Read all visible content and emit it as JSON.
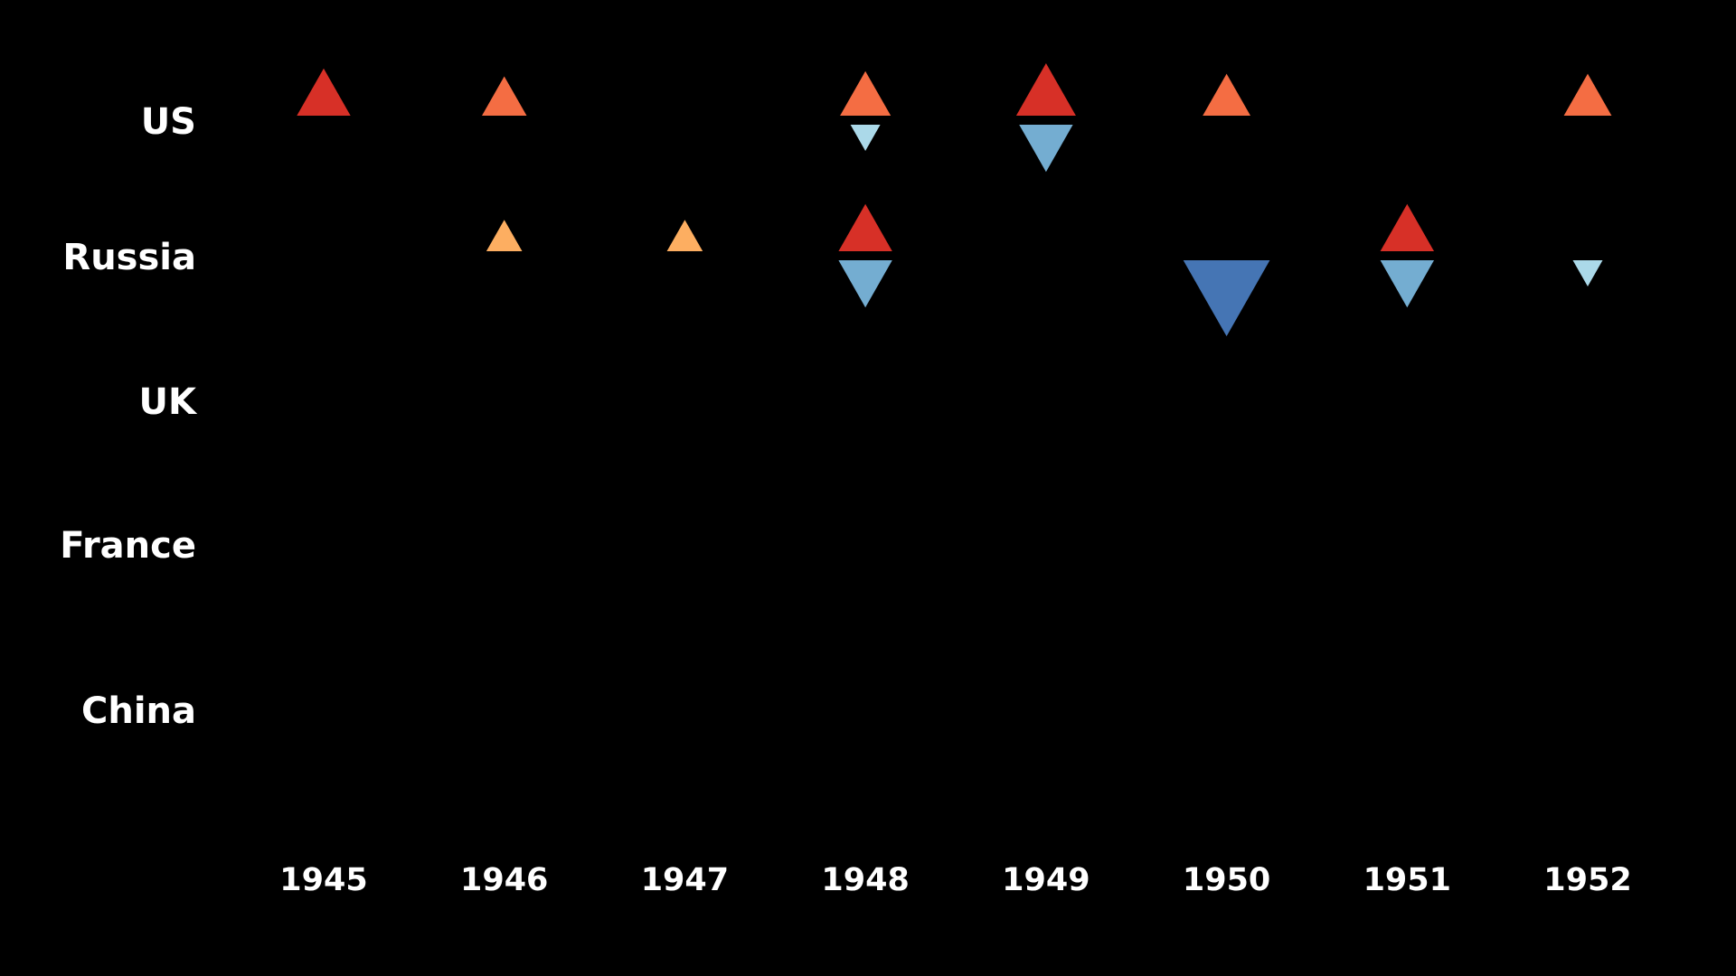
{
  "chart_data": {
    "type": "scatter",
    "title": "",
    "xlabel": "",
    "ylabel": "",
    "background": "#000000",
    "countries": [
      "US",
      "Russia",
      "UK",
      "France",
      "China"
    ],
    "years": [
      "1945",
      "1946",
      "1947",
      "1948",
      "1949",
      "1950",
      "1951",
      "1952"
    ],
    "markers": {
      "up": "triangle pointing up, above country baseline",
      "down": "triangle pointing down, below country baseline"
    },
    "points": [
      {
        "country": "US",
        "year": "1945",
        "direction": "up",
        "magnitude": 0.9,
        "color": "#d73027"
      },
      {
        "country": "US",
        "year": "1946",
        "direction": "up",
        "magnitude": 0.75,
        "color": "#f46d43"
      },
      {
        "country": "US",
        "year": "1948",
        "direction": "up",
        "magnitude": 0.85,
        "color": "#f46d43"
      },
      {
        "country": "US",
        "year": "1948",
        "direction": "down",
        "magnitude": 0.5,
        "color": "#abd9e9"
      },
      {
        "country": "US",
        "year": "1949",
        "direction": "up",
        "magnitude": 1.0,
        "color": "#d73027"
      },
      {
        "country": "US",
        "year": "1949",
        "direction": "down",
        "magnitude": 0.9,
        "color": "#74add1"
      },
      {
        "country": "US",
        "year": "1950",
        "direction": "up",
        "magnitude": 0.8,
        "color": "#f46d43"
      },
      {
        "country": "US",
        "year": "1952",
        "direction": "up",
        "magnitude": 0.8,
        "color": "#f46d43"
      },
      {
        "country": "Russia",
        "year": "1946",
        "direction": "up",
        "magnitude": 0.6,
        "color": "#fdae61"
      },
      {
        "country": "Russia",
        "year": "1947",
        "direction": "up",
        "magnitude": 0.6,
        "color": "#fdae61"
      },
      {
        "country": "Russia",
        "year": "1948",
        "direction": "up",
        "magnitude": 0.9,
        "color": "#d73027"
      },
      {
        "country": "Russia",
        "year": "1948",
        "direction": "down",
        "magnitude": 0.9,
        "color": "#74add1"
      },
      {
        "country": "Russia",
        "year": "1950",
        "direction": "down",
        "magnitude": 1.45,
        "color": "#4575b4"
      },
      {
        "country": "Russia",
        "year": "1951",
        "direction": "up",
        "magnitude": 0.9,
        "color": "#d73027"
      },
      {
        "country": "Russia",
        "year": "1951",
        "direction": "down",
        "magnitude": 0.9,
        "color": "#74add1"
      },
      {
        "country": "Russia",
        "year": "1952",
        "direction": "down",
        "magnitude": 0.5,
        "color": "#abd9e9"
      }
    ],
    "grid": false,
    "legend": "none"
  }
}
